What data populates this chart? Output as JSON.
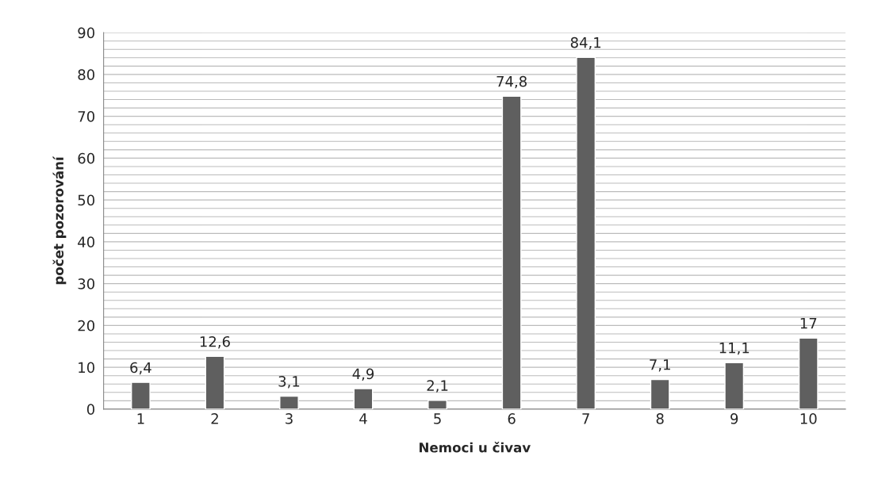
{
  "chart_data": {
    "type": "bar",
    "xlabel": "Nemoci u čivav",
    "ylabel": "počet pozorování",
    "categories": [
      "1",
      "2",
      "3",
      "4",
      "5",
      "6",
      "7",
      "8",
      "9",
      "10"
    ],
    "values": [
      6.4,
      12.6,
      3.1,
      4.9,
      2.1,
      74.8,
      84.1,
      7.1,
      11.1,
      17
    ],
    "value_labels": [
      "6,4",
      "12,6",
      "3,1",
      "4,9",
      "2,1",
      "74,8",
      "84,1",
      "7,1",
      "11,1",
      "17"
    ],
    "color": "#5f5f5f",
    "ylim": [
      0,
      90
    ],
    "yticks": [
      0,
      {
        "value": 2,
        "label": null
      },
      {
        "value": 4,
        "label": null
      },
      {
        "value": 6,
        "label": null
      },
      {
        "value": 8,
        "label": null
      },
      10,
      {
        "value": 12,
        "label": null
      },
      {
        "value": 14,
        "label": null
      },
      {
        "value": 16,
        "label": null
      },
      {
        "value": 18,
        "label": null
      },
      20,
      {
        "value": 22,
        "label": null
      },
      {
        "value": 24,
        "label": null
      },
      {
        "value": 26,
        "label": null
      },
      {
        "value": 28,
        "label": null
      },
      30,
      {
        "value": 32,
        "label": null
      },
      {
        "value": 34,
        "label": null
      },
      {
        "value": 36,
        "label": null
      },
      {
        "value": 38,
        "label": null
      },
      40,
      {
        "value": 42,
        "label": null
      },
      {
        "value": 44,
        "label": null
      },
      {
        "value": 46,
        "label": null
      },
      {
        "value": 48,
        "label": null
      },
      50,
      {
        "value": 52,
        "label": null
      },
      {
        "value": 54,
        "label": null
      },
      {
        "value": 56,
        "label": null
      },
      {
        "value": 58,
        "label": null
      },
      60,
      {
        "value": 62,
        "label": null
      },
      {
        "value": 64,
        "label": null
      },
      {
        "value": 66,
        "label": null
      },
      {
        "value": 68,
        "label": null
      },
      70,
      {
        "value": 72,
        "label": null
      },
      {
        "value": 74,
        "label": null
      },
      {
        "value": 76,
        "label": null
      },
      {
        "value": 78,
        "label": null
      },
      80,
      {
        "value": 82,
        "label": null
      },
      {
        "value": 84,
        "label": null
      },
      {
        "value": 86,
        "label": null
      },
      {
        "value": 88,
        "label": null
      },
      90
    ],
    "grid": "y",
    "legend": false
  }
}
